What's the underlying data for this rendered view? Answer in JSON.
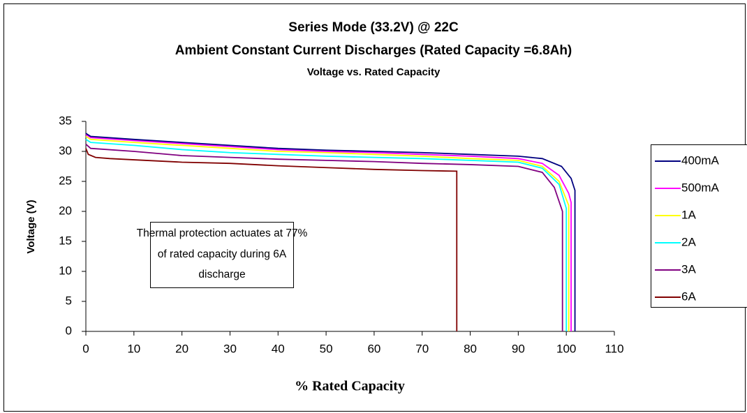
{
  "chart_data": {
    "type": "line",
    "title": [
      "Series Mode (33.2V) @ 22C",
      "Ambient Constant Current Discharges (Rated Capacity =6.8Ah)"
    ],
    "subtitle": "Voltage vs. Rated Capacity",
    "x_label": "% Rated Capacity",
    "y_label": "Voltage (V)",
    "annotation": [
      "Thermal protection actuates at 77%",
      "of rated capacity during 6A",
      "discharge"
    ],
    "xlim": [
      0,
      110
    ],
    "xticks": [
      0,
      10,
      20,
      30,
      40,
      50,
      60,
      70,
      80,
      90,
      100,
      110
    ],
    "ylim": [
      0,
      35
    ],
    "yticks": [
      0,
      5,
      10,
      15,
      20,
      25,
      30,
      35
    ],
    "grid": false,
    "legend": "right",
    "series": [
      {
        "name": "400mA",
        "color": "#000080",
        "x": [
          0,
          1,
          10,
          20,
          30,
          40,
          50,
          60,
          70,
          80,
          90,
          95,
          99,
          101,
          101.8,
          101.8
        ],
        "values": [
          33,
          32.5,
          32,
          31.5,
          31,
          30.5,
          30.2,
          30,
          29.8,
          29.5,
          29.2,
          28.8,
          27.5,
          25.5,
          23.5,
          0
        ]
      },
      {
        "name": "500mA",
        "color": "#ff00ff",
        "x": [
          0,
          1,
          10,
          20,
          30,
          40,
          50,
          60,
          70,
          80,
          90,
          95,
          98.5,
          100.5,
          101,
          101
        ],
        "values": [
          32.8,
          32.3,
          31.8,
          31.3,
          30.8,
          30.3,
          30,
          29.8,
          29.5,
          29.2,
          28.8,
          28,
          26,
          23,
          21.5,
          0
        ]
      },
      {
        "name": "1A",
        "color": "#ffff00",
        "x": [
          0,
          1,
          10,
          20,
          30,
          40,
          50,
          60,
          70,
          80,
          90,
          95,
          98.5,
          100.5,
          100.5
        ],
        "values": [
          32.5,
          32,
          31.5,
          31,
          30.5,
          30,
          29.8,
          29.5,
          29.2,
          28.8,
          28.5,
          27.5,
          25,
          21,
          0
        ]
      },
      {
        "name": "2A",
        "color": "#00ffff",
        "x": [
          0,
          1,
          10,
          20,
          30,
          40,
          50,
          60,
          70,
          80,
          90,
          95,
          98.5,
          100,
          100
        ],
        "values": [
          32,
          31.5,
          31,
          30.3,
          29.8,
          29.5,
          29.2,
          29,
          28.8,
          28.5,
          28.2,
          27.2,
          24.5,
          20.5,
          0
        ]
      },
      {
        "name": "3A",
        "color": "#800080",
        "x": [
          0,
          1,
          10,
          20,
          30,
          40,
          50,
          60,
          70,
          80,
          90,
          95,
          97.5,
          99.2,
          99.2
        ],
        "values": [
          31.2,
          30.5,
          30,
          29.3,
          29,
          28.7,
          28.5,
          28.3,
          28,
          27.8,
          27.5,
          26.5,
          24,
          20,
          0
        ]
      },
      {
        "name": "6A",
        "color": "#800000",
        "x": [
          0,
          0.5,
          2,
          5,
          10,
          20,
          30,
          40,
          50,
          60,
          70,
          77.2,
          77.2
        ],
        "values": [
          30.5,
          29.5,
          29,
          28.8,
          28.6,
          28.2,
          28,
          27.6,
          27.3,
          27,
          26.8,
          26.7,
          0
        ]
      }
    ]
  }
}
